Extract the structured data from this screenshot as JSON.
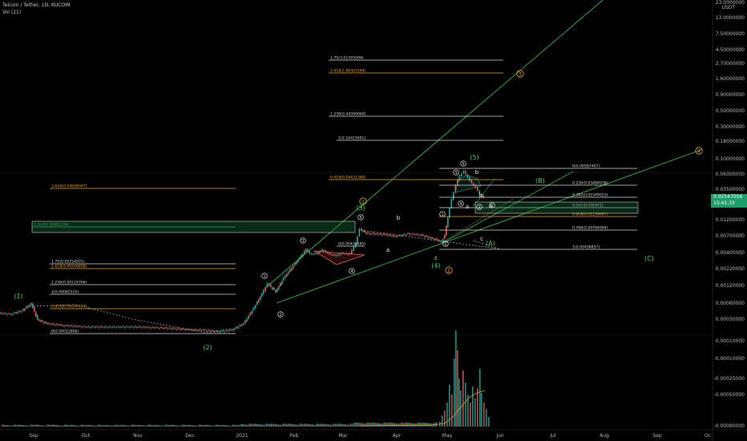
{
  "header": {
    "symbol_line": "Telcoin / Tether, 1D, KUCOIN",
    "indicator_line": "Vol (21)"
  },
  "price_tag": {
    "price": "0.02547056",
    "countdown": "15:41:33"
  },
  "colors": {
    "up": "#26a69a",
    "down": "#ef5350",
    "green_line": "#2db84b",
    "orange": "#f0a030",
    "fib_white": "#d8d8d8"
  },
  "chart_data": {
    "type": "line",
    "title": "Telcoin / Tether, 1D, KUCOIN",
    "x_ticks": [
      "Sep",
      "Oct",
      "Nov",
      "Dec",
      "2021",
      "Feb",
      "Mar",
      "Apr",
      "May",
      "Jun",
      "Jul",
      "Aug",
      "Sep",
      "Oc"
    ],
    "price_axis_unit": "USDT",
    "price_axis_ticks": [
      "23.0000000",
      "13.0000000",
      "7.50000000",
      "4.50000000",
      "2.70000000",
      "1.60000000",
      "0.90000000",
      "0.50000000",
      "0.30000000",
      "0.18000000",
      "0.10000000",
      "0.06000000",
      "0.03500000",
      "0.02000000",
      "0.01200000",
      "0.00700000",
      "0.00400000",
      "0.00220000",
      "0.00120000",
      "0.00060000",
      "0.00030000",
      "0.00010000",
      "-0.00010000",
      "-0.00025000",
      "-0.00050000",
      "-0.00090000"
    ],
    "price_axis_log": true,
    "grid": false,
    "fib_levels": [
      {
        "label": "1.75(3.01393589)",
        "color": "white"
      },
      {
        "label": "1.618(1.84307284)",
        "color": "orange"
      },
      {
        "label": "1.236(0.44399069)",
        "color": "white"
      },
      {
        "label": "1(0.18423691)",
        "color": "white"
      },
      {
        "label": "0.618(0.04431380)",
        "color": "orange"
      },
      {
        "label": "0(0.06587467)",
        "color": "white"
      },
      {
        "label": "0.236(0.03484938)",
        "color": "white"
      },
      {
        "label": "0.382(0.02349023)",
        "color": "white"
      },
      {
        "label": "0.5(0.01706972)",
        "color": "white"
      },
      {
        "label": "0.618(0.01239667)",
        "color": "orange"
      },
      {
        "label": "0.786(0.00784994)",
        "color": "white"
      },
      {
        "label": "1(0.00436837)",
        "color": "white"
      },
      {
        "label": "3.618(0.03608947)",
        "color": "orange"
      },
      {
        "label": "2.618(0.00881194)",
        "color": "green"
      },
      {
        "label": "0(0.00434185)",
        "color": "white"
      },
      {
        "label": "1.75(0.00254501)",
        "color": "white"
      },
      {
        "label": "1.618(0.00209658)",
        "color": "orange"
      },
      {
        "label": "1.236(0.00118766)",
        "color": "white"
      },
      {
        "label": "1(0.00082525)",
        "color": "white"
      },
      {
        "label": "0.618(0.00044197)",
        "color": "orange"
      },
      {
        "label": "0(0.00012806)",
        "color": "white"
      }
    ],
    "wave_labels": {
      "green": [
        "(1)",
        "(2)",
        "(3)",
        "(4)",
        "(5)",
        "(B)",
        "(A)",
        "(C)"
      ],
      "orange": [
        "1",
        "2",
        "3",
        "4"
      ],
      "white_circled": [
        "1",
        "2",
        "3",
        "4",
        "5",
        "1",
        "2",
        "3",
        "4",
        "5",
        "1",
        "2"
      ],
      "letters": [
        "a",
        "b",
        "c",
        "a",
        "b",
        "c",
        "a",
        "b"
      ]
    },
    "volume_series": {
      "name": "Vol (21)"
    }
  }
}
